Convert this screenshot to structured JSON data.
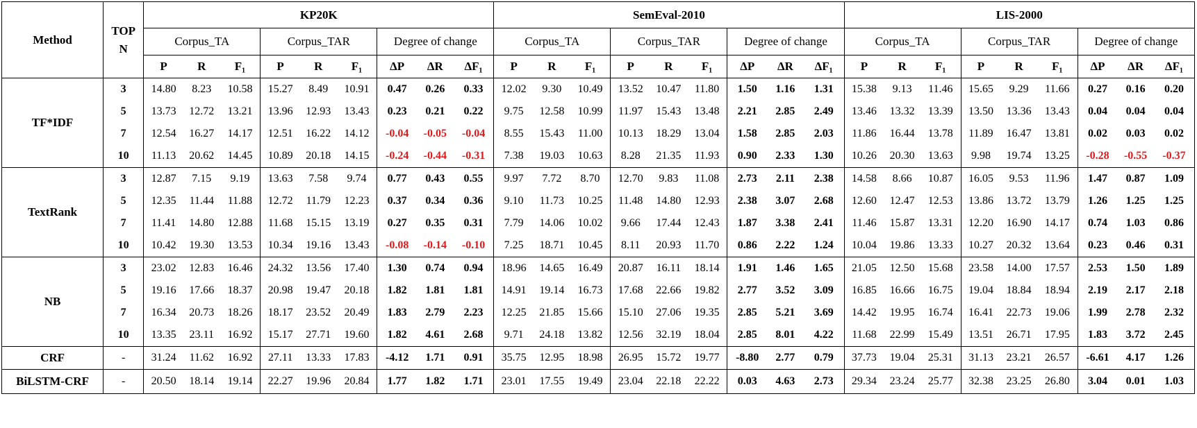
{
  "header": {
    "method": "Method",
    "topn_line1": "TOP",
    "topn_line2": "N",
    "datasets": [
      "KP20K",
      "SemEval-2010",
      "LIS-2000"
    ],
    "subgroups": [
      "Corpus_TA",
      "Corpus_TAR",
      "Degree of change"
    ],
    "metrics": [
      "P",
      "R",
      "F₁"
    ],
    "delta_metrics": [
      "ΔP",
      "ΔR",
      "ΔF₁"
    ]
  },
  "methods": [
    {
      "name": "TF*IDF",
      "rows": [
        {
          "n": "3",
          "values": [
            "14.80",
            "8.23",
            "10.58",
            "15.27",
            "8.49",
            "10.91",
            "0.47",
            "0.26",
            "0.33",
            "12.02",
            "9.30",
            "10.49",
            "13.52",
            "10.47",
            "11.80",
            "1.50",
            "1.16",
            "1.31",
            "15.38",
            "9.13",
            "11.46",
            "15.65",
            "9.29",
            "11.66",
            "0.27",
            "0.16",
            "0.20"
          ]
        },
        {
          "n": "5",
          "values": [
            "13.73",
            "12.72",
            "13.21",
            "13.96",
            "12.93",
            "13.43",
            "0.23",
            "0.21",
            "0.22",
            "9.75",
            "12.58",
            "10.99",
            "11.97",
            "15.43",
            "13.48",
            "2.21",
            "2.85",
            "2.49",
            "13.46",
            "13.32",
            "13.39",
            "13.50",
            "13.36",
            "13.43",
            "0.04",
            "0.04",
            "0.04"
          ]
        },
        {
          "n": "7",
          "values": [
            "12.54",
            "16.27",
            "14.17",
            "12.51",
            "16.22",
            "14.12",
            "-0.04",
            "-0.05",
            "-0.04",
            "8.55",
            "15.43",
            "11.00",
            "10.13",
            "18.29",
            "13.04",
            "1.58",
            "2.85",
            "2.03",
            "11.86",
            "16.44",
            "13.78",
            "11.89",
            "16.47",
            "13.81",
            "0.02",
            "0.03",
            "0.02"
          ]
        },
        {
          "n": "10",
          "values": [
            "11.13",
            "20.62",
            "14.45",
            "10.89",
            "20.18",
            "14.15",
            "-0.24",
            "-0.44",
            "-0.31",
            "7.38",
            "19.03",
            "10.63",
            "8.28",
            "21.35",
            "11.93",
            "0.90",
            "2.33",
            "1.30",
            "10.26",
            "20.30",
            "13.63",
            "9.98",
            "19.74",
            "13.25",
            "-0.28",
            "-0.55",
            "-0.37"
          ]
        }
      ]
    },
    {
      "name": "TextRank",
      "rows": [
        {
          "n": "3",
          "values": [
            "12.87",
            "7.15",
            "9.19",
            "13.63",
            "7.58",
            "9.74",
            "0.77",
            "0.43",
            "0.55",
            "9.97",
            "7.72",
            "8.70",
            "12.70",
            "9.83",
            "11.08",
            "2.73",
            "2.11",
            "2.38",
            "14.58",
            "8.66",
            "10.87",
            "16.05",
            "9.53",
            "11.96",
            "1.47",
            "0.87",
            "1.09"
          ]
        },
        {
          "n": "5",
          "values": [
            "12.35",
            "11.44",
            "11.88",
            "12.72",
            "11.79",
            "12.23",
            "0.37",
            "0.34",
            "0.36",
            "9.10",
            "11.73",
            "10.25",
            "11.48",
            "14.80",
            "12.93",
            "2.38",
            "3.07",
            "2.68",
            "12.60",
            "12.47",
            "12.53",
            "13.86",
            "13.72",
            "13.79",
            "1.26",
            "1.25",
            "1.25"
          ]
        },
        {
          "n": "7",
          "values": [
            "11.41",
            "14.80",
            "12.88",
            "11.68",
            "15.15",
            "13.19",
            "0.27",
            "0.35",
            "0.31",
            "7.79",
            "14.06",
            "10.02",
            "9.66",
            "17.44",
            "12.43",
            "1.87",
            "3.38",
            "2.41",
            "11.46",
            "15.87",
            "13.31",
            "12.20",
            "16.90",
            "14.17",
            "0.74",
            "1.03",
            "0.86"
          ]
        },
        {
          "n": "10",
          "values": [
            "10.42",
            "19.30",
            "13.53",
            "10.34",
            "19.16",
            "13.43",
            "-0.08",
            "-0.14",
            "-0.10",
            "7.25",
            "18.71",
            "10.45",
            "8.11",
            "20.93",
            "11.70",
            "0.86",
            "2.22",
            "1.24",
            "10.04",
            "19.86",
            "13.33",
            "10.27",
            "20.32",
            "13.64",
            "0.23",
            "0.46",
            "0.31"
          ]
        }
      ]
    },
    {
      "name": "NB",
      "rows": [
        {
          "n": "3",
          "values": [
            "23.02",
            "12.83",
            "16.46",
            "24.32",
            "13.56",
            "17.40",
            "1.30",
            "0.74",
            "0.94",
            "18.96",
            "14.65",
            "16.49",
            "20.87",
            "16.11",
            "18.14",
            "1.91",
            "1.46",
            "1.65",
            "21.05",
            "12.50",
            "15.68",
            "23.58",
            "14.00",
            "17.57",
            "2.53",
            "1.50",
            "1.89"
          ]
        },
        {
          "n": "5",
          "values": [
            "19.16",
            "17.66",
            "18.37",
            "20.98",
            "19.47",
            "20.18",
            "1.82",
            "1.81",
            "1.81",
            "14.91",
            "19.14",
            "16.73",
            "17.68",
            "22.66",
            "19.82",
            "2.77",
            "3.52",
            "3.09",
            "16.85",
            "16.66",
            "16.75",
            "19.04",
            "18.84",
            "18.94",
            "2.19",
            "2.17",
            "2.18"
          ]
        },
        {
          "n": "7",
          "values": [
            "16.34",
            "20.73",
            "18.26",
            "18.17",
            "23.52",
            "20.49",
            "1.83",
            "2.79",
            "2.23",
            "12.25",
            "21.85",
            "15.66",
            "15.10",
            "27.06",
            "19.35",
            "2.85",
            "5.21",
            "3.69",
            "14.42",
            "19.95",
            "16.74",
            "16.41",
            "22.73",
            "19.06",
            "1.99",
            "2.78",
            "2.32"
          ]
        },
        {
          "n": "10",
          "values": [
            "13.35",
            "23.11",
            "16.92",
            "15.17",
            "27.71",
            "19.60",
            "1.82",
            "4.61",
            "2.68",
            "9.71",
            "24.18",
            "13.82",
            "12.56",
            "32.19",
            "18.04",
            "2.85",
            "8.01",
            "4.22",
            "11.68",
            "22.99",
            "15.49",
            "13.51",
            "26.71",
            "17.95",
            "1.83",
            "3.72",
            "2.45"
          ]
        }
      ]
    },
    {
      "name": "CRF",
      "rows": [
        {
          "n": "-",
          "values": [
            "31.24",
            "11.62",
            "16.92",
            "27.11",
            "13.33",
            "17.83",
            "-4.12",
            "1.71",
            "0.91",
            "35.75",
            "12.95",
            "18.98",
            "26.95",
            "15.72",
            "19.77",
            "-8.80",
            "2.77",
            "0.79",
            "37.73",
            "19.04",
            "25.31",
            "31.13",
            "23.21",
            "26.57",
            "-6.61",
            "4.17",
            "1.26"
          ]
        }
      ]
    },
    {
      "name": "BiLSTM-CRF",
      "rows": [
        {
          "n": "-",
          "values": [
            "20.50",
            "18.14",
            "19.14",
            "22.27",
            "19.96",
            "20.84",
            "1.77",
            "1.82",
            "1.71",
            "23.01",
            "17.55",
            "19.49",
            "23.04",
            "22.18",
            "22.22",
            "0.03",
            "4.63",
            "2.73",
            "29.34",
            "23.24",
            "25.77",
            "32.38",
            "23.25",
            "26.80",
            "3.04",
            "0.01",
            "1.03"
          ]
        }
      ]
    }
  ],
  "colors": {
    "text": "#000000",
    "negative": "#e0191b",
    "background": "#ffffff"
  }
}
